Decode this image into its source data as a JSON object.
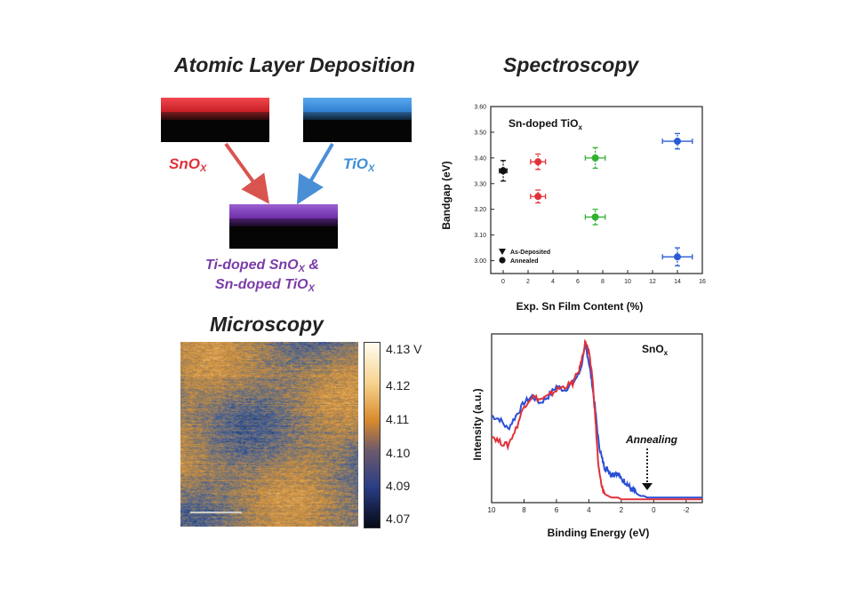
{
  "headings": {
    "ald": "Atomic Layer Deposition",
    "spectroscopy": "Spectroscopy",
    "microscopy": "Microscopy"
  },
  "ald": {
    "sno_label": "SnO",
    "tio_label": "TiO",
    "sub_x": "X",
    "combined_line1_a": "Ti-doped SnO",
    "combined_line1_b": " &",
    "combined_line2_a": "Sn-doped TiO",
    "colors": {
      "sno": "#e0323a",
      "tio": "#3d8fd9",
      "combined": "#7a3ca8"
    }
  },
  "colorbar": {
    "ticks": [
      "4.13 V",
      "4.12",
      "4.11",
      "4.10",
      "4.09",
      "4.07"
    ]
  },
  "chart_data": [
    {
      "type": "scatter",
      "title": "Sn-doped TiO",
      "title_sub": "x",
      "xlabel": "Exp. Sn Film Content (%)",
      "ylabel": "Bandgap (eV)",
      "xlim": [
        -1,
        16
      ],
      "ylim": [
        2.95,
        3.6
      ],
      "x_ticks": [
        0,
        2,
        4,
        6,
        8,
        10,
        12,
        14,
        16
      ],
      "y_ticks": [
        3.0,
        3.1,
        3.2,
        3.3,
        3.4,
        3.5,
        3.6
      ],
      "x_tick_labels": [
        "0",
        "2",
        "4",
        "6",
        "8",
        "10",
        "12",
        "14",
        "16"
      ],
      "y_tick_labels": [
        "3.00",
        "3.10",
        "3.20",
        "3.30",
        "3.40",
        "3.50",
        "3.60"
      ],
      "legend": [
        "As-Deposited",
        "Annealed"
      ],
      "legend_position": "bottom-left",
      "points": [
        {
          "x": 0,
          "y": 3.35,
          "xerr": 0.3,
          "yerr": 0.04,
          "color": "#111111"
        },
        {
          "x": 2.8,
          "y": 3.385,
          "xerr": 0.6,
          "yerr": 0.03,
          "color": "#e0323a"
        },
        {
          "x": 2.8,
          "y": 3.25,
          "xerr": 0.6,
          "yerr": 0.025,
          "color": "#e0323a"
        },
        {
          "x": 7.4,
          "y": 3.4,
          "xerr": 0.8,
          "yerr": 0.04,
          "color": "#2fb12f"
        },
        {
          "x": 7.4,
          "y": 3.17,
          "xerr": 0.8,
          "yerr": 0.03,
          "color": "#2fb12f"
        },
        {
          "x": 14.0,
          "y": 3.465,
          "xerr": 1.2,
          "yerr": 0.03,
          "color": "#2a5bd6"
        },
        {
          "x": 14.0,
          "y": 3.015,
          "xerr": 1.2,
          "yerr": 0.035,
          "color": "#2a5bd6"
        }
      ]
    },
    {
      "type": "line",
      "title": "SnO",
      "title_sub": "x",
      "xlabel": "Binding Energy (eV)",
      "ylabel": "Intensity (a.u.)",
      "xlim": [
        10,
        -3
      ],
      "x_ticks": [
        10,
        8,
        6,
        4,
        2,
        0,
        -2
      ],
      "x_tick_labels": [
        "10",
        "8",
        "6",
        "4",
        "2",
        "0",
        "-2"
      ],
      "annotation": "Annealing",
      "annotation_x": 0.4,
      "series": [
        {
          "color": "#2a4fd6",
          "x": [
            10,
            9.5,
            9,
            8.5,
            8,
            7.5,
            7,
            6.5,
            6,
            5.5,
            5,
            4.6,
            4.4,
            4.2,
            4,
            3.8,
            3.6,
            3.4,
            3.2,
            3,
            2.8,
            2.6,
            2.4,
            2.2,
            2,
            1.8,
            1.6,
            1.4,
            1.2,
            1,
            0.8,
            0.6,
            0.4,
            0.2,
            0,
            -0.5,
            -1,
            -1.5,
            -2,
            -2.5,
            -3
          ],
          "y": [
            0.52,
            0.5,
            0.44,
            0.52,
            0.6,
            0.64,
            0.6,
            0.64,
            0.7,
            0.68,
            0.72,
            0.78,
            0.86,
            0.95,
            0.85,
            0.72,
            0.55,
            0.36,
            0.26,
            0.2,
            0.19,
            0.16,
            0.17,
            0.17,
            0.13,
            0.12,
            0.1,
            0.07,
            0.06,
            0.04,
            0.03,
            0.03,
            0.02,
            0.02,
            0.02,
            0.02,
            0.02,
            0.02,
            0.02,
            0.02,
            0.02
          ]
        },
        {
          "color": "#e0323a",
          "x": [
            10,
            9.5,
            9,
            8.5,
            8,
            7.5,
            7,
            6.5,
            6,
            5.5,
            5,
            4.6,
            4.4,
            4.2,
            4,
            3.8,
            3.6,
            3.4,
            3.2,
            3,
            2.8,
            2.6,
            2.4,
            2.2,
            2,
            1.8,
            1.6,
            1.4,
            1.2,
            1,
            0.8,
            0.6,
            0.4,
            0.2,
            0,
            -0.5,
            -1,
            -1.5,
            -2,
            -2.5,
            -3
          ],
          "y": [
            0.4,
            0.36,
            0.34,
            0.44,
            0.58,
            0.64,
            0.62,
            0.64,
            0.68,
            0.7,
            0.72,
            0.8,
            0.88,
            0.98,
            0.9,
            0.78,
            0.5,
            0.2,
            0.08,
            0.04,
            0.03,
            0.02,
            0.02,
            0.02,
            0.01,
            0.01,
            0.01,
            0.01,
            0.01,
            0.01,
            0.01,
            0.01,
            0.01,
            0.01,
            0.01,
            0.01,
            0.01,
            0.01,
            0.01,
            0.01,
            0.01
          ]
        }
      ]
    }
  ]
}
